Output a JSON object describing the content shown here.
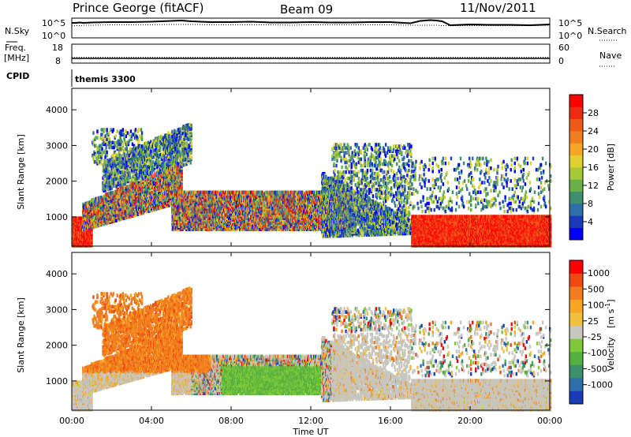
{
  "header": {
    "station": "Prince George (fitACF)",
    "beam": "Beam 09",
    "date": "11/Nov/2011"
  },
  "chart_data": [
    {
      "type": "line",
      "name": "sky-search-noise",
      "left_label": "N.Sky",
      "right_label": "N.Search",
      "left_ticks": [
        "10^5",
        "10^0"
      ],
      "right_ticks": [
        "10^5",
        "10^0"
      ],
      "yscale": "log",
      "ylim_exponent": [
        0,
        5
      ],
      "x_hours": [
        0,
        0.2,
        0.4,
        0.6,
        1,
        2,
        3,
        4,
        5,
        5.5,
        6,
        7,
        8,
        9,
        10,
        11,
        12,
        13,
        14,
        15,
        16,
        17,
        17.5,
        18,
        18.3,
        18.6,
        19,
        20,
        21,
        22,
        23,
        24
      ],
      "series": [
        {
          "style": "solid",
          "log_values": [
            3.8,
            3.8,
            3.9,
            3.8,
            3.9,
            4.0,
            4.0,
            4.1,
            4.3,
            4.4,
            4.2,
            4.0,
            4.0,
            4.1,
            3.9,
            3.9,
            4.0,
            3.9,
            3.9,
            4.0,
            4.0,
            3.7,
            4.3,
            4.5,
            4.4,
            4.2,
            3.2,
            3.4,
            3.3,
            3.3,
            3.2,
            3.4
          ]
        },
        {
          "style": "dotted",
          "log_values": [
            3.0,
            3.1,
            3.1,
            3.2,
            3.2,
            3.3,
            3.3,
            3.3,
            3.4,
            3.4,
            3.4,
            3.3,
            3.3,
            3.3,
            3.3,
            3.2,
            3.3,
            3.3,
            3.3,
            3.3,
            3.3,
            3.2,
            3.2,
            3.2,
            3.2,
            3.1,
            3.1,
            3.1,
            3.1,
            3.1,
            3.1,
            3.2
          ]
        }
      ]
    },
    {
      "type": "line",
      "name": "frequency-nave",
      "left_label_1": "Freq.",
      "left_label_2": "[MHz]",
      "left_ticks": [
        "18",
        "8"
      ],
      "right_label": "Nave",
      "right_ticks": [
        "60",
        "0"
      ],
      "ylim": [
        8,
        18
      ],
      "x_hours": [
        0,
        24
      ],
      "series": [
        {
          "style": "solid",
          "values": [
            10.5,
            10.5
          ]
        },
        {
          "style": "dotted",
          "values": [
            11.0,
            11.0
          ]
        }
      ]
    },
    {
      "type": "label",
      "name": "cpid",
      "label": "CPID",
      "program": "themis 3300"
    },
    {
      "type": "heatmap",
      "name": "power",
      "ylabel": "Slant Range [km]",
      "ylim": [
        180,
        4600
      ],
      "yticks": [
        1000,
        2000,
        3000,
        4000
      ],
      "colorbar_label": "Power [dB]",
      "colorbar_ticks": [
        "4",
        "8",
        "12",
        "16",
        "20",
        "24",
        "28"
      ],
      "colorbar_range": [
        0,
        32
      ],
      "colors": [
        "#0000ff",
        "#1a3ab8",
        "#2f6eaa",
        "#3f8f6f",
        "#6ab04a",
        "#a6c93a",
        "#e0d030",
        "#f5a623",
        "#f07d1f",
        "#ef5a1a",
        "#ee2a12",
        "#ff0000"
      ]
    },
    {
      "type": "heatmap",
      "name": "velocity",
      "ylabel": "Slant Range [km]",
      "ylim": [
        180,
        4600
      ],
      "yticks": [
        1000,
        2000,
        3000,
        4000
      ],
      "colorbar_label_1": "Velocity",
      "colorbar_label_2": "[m s",
      "colorbar_label_sup": "-1",
      "colorbar_label_3": "]",
      "colorbar_ticks": [
        "1000",
        "500",
        "100",
        "25",
        "-25",
        "-100",
        "-500",
        "-1000"
      ],
      "colors": [
        "#1a3ab8",
        "#2f6eaa",
        "#3f8f6f",
        "#55b040",
        "#7ec83a",
        "#c7c7c0",
        "#f0c040",
        "#f5a623",
        "#f07d1f",
        "#ee4a12",
        "#ff0000"
      ],
      "ground_scatter_color": "#c7c7c0"
    }
  ],
  "xaxis": {
    "label": "Time UT",
    "ticks": [
      "00:00",
      "04:00",
      "08:00",
      "12:00",
      "16:00",
      "20:00",
      "00:00"
    ],
    "range_hours": [
      0,
      24
    ]
  }
}
